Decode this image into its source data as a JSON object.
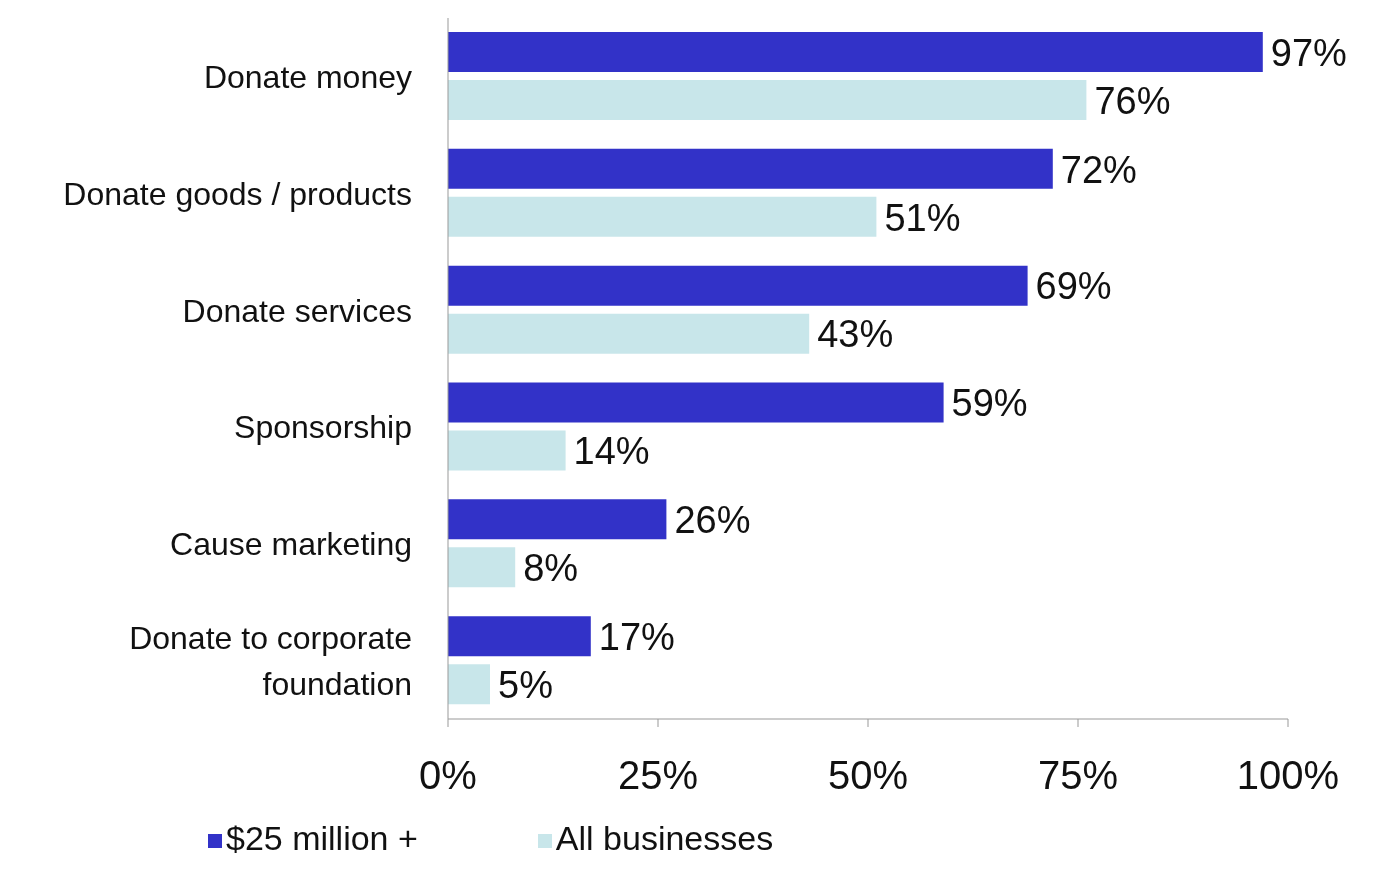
{
  "chart_data": {
    "type": "bar",
    "orientation": "horizontal",
    "categories": [
      "Donate money",
      "Donate goods / products",
      "Donate services",
      "Sponsorship",
      "Cause marketing",
      "Donate to corporate foundation"
    ],
    "series": [
      {
        "name": "$25 million +",
        "color": "#3232c8",
        "values": [
          97,
          72,
          69,
          59,
          26,
          17
        ],
        "value_labels": [
          "97%",
          "72%",
          "69%",
          "59%",
          "26%",
          "17%"
        ]
      },
      {
        "name": "All businesses",
        "color": "#c8e6ea",
        "values": [
          76,
          51,
          43,
          14,
          8,
          5
        ],
        "value_labels": [
          "76%",
          "51%",
          "43%",
          "14%",
          "8%",
          "5%"
        ]
      }
    ],
    "xlim": [
      0,
      100
    ],
    "xticks": [
      {
        "value": 0,
        "label": "0%"
      },
      {
        "value": 25,
        "label": "25%"
      },
      {
        "value": 50,
        "label": "50%"
      },
      {
        "value": 75,
        "label": "75%"
      },
      {
        "value": 100,
        "label": "100%"
      }
    ],
    "grid": false,
    "legend": "bottom left"
  }
}
